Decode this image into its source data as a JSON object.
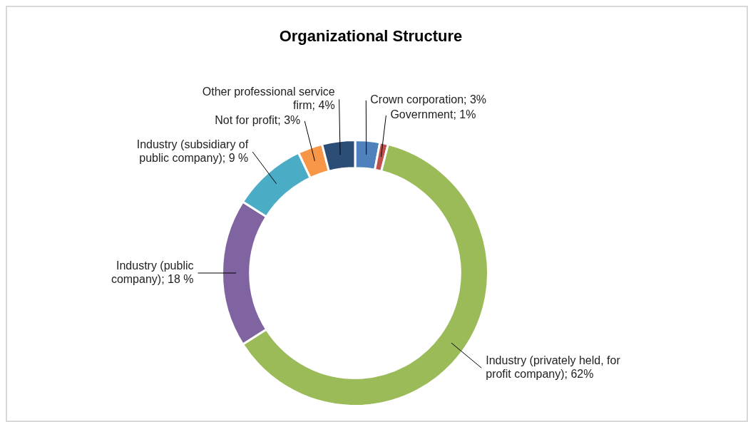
{
  "chart_data": {
    "type": "donut",
    "title": "Organizational Structure",
    "categories": [
      "Crown corporation",
      "Government",
      "Industry (privately held, for profit company)",
      "Industry (public company)",
      "Industry (subsidiary of public company)",
      "Not for profit",
      "Other professional service firm"
    ],
    "values": [
      3,
      1,
      62,
      18,
      9,
      3,
      4
    ],
    "value_labels": [
      "3%",
      "1%",
      "62%",
      "18 %",
      "9 %",
      "3%",
      "4%"
    ],
    "colors": [
      "#4f81bd",
      "#c0504d",
      "#9bbb59",
      "#8064a2",
      "#4bacc6",
      "#f79646",
      "#2c4d75"
    ],
    "legend": false
  }
}
